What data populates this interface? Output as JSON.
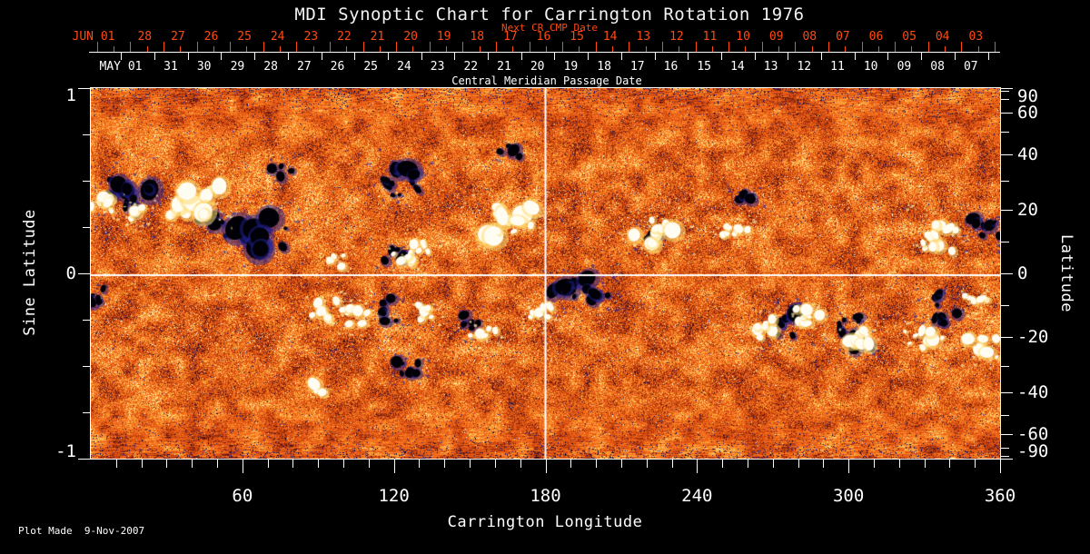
{
  "title": "MDI Synoptic Chart for Carrington Rotation 1976",
  "footer": "Plot Made  9-Nov-2007",
  "colors": {
    "background": "#000000",
    "axis_text": "#ffffff",
    "next_cr_axis_text": "#ff4a12",
    "reference_line": "#ffffff"
  },
  "axes": {
    "x_top_red": {
      "title": "Next CR CMP Date",
      "first_label": "JUN 01",
      "day_labels": [
        "28",
        "27",
        "26",
        "25",
        "24",
        "23",
        "22",
        "21",
        "20",
        "19",
        "18",
        "17",
        "16",
        "15",
        "14",
        "13",
        "12",
        "11",
        "10",
        "09",
        "08",
        "07",
        "06",
        "05",
        "04",
        "03"
      ]
    },
    "x_top_white": {
      "title": "Central Meridian Passage Date",
      "first_label": "MAY 01",
      "day_labels": [
        "31",
        "30",
        "29",
        "28",
        "27",
        "26",
        "25",
        "24",
        "23",
        "22",
        "21",
        "20",
        "19",
        "18",
        "17",
        "16",
        "15",
        "14",
        "13",
        "12",
        "11",
        "10",
        "09",
        "08",
        "07"
      ]
    },
    "x_bottom": {
      "title": "Carrington Longitude",
      "labels": [
        "60",
        "120",
        "180",
        "240",
        "300",
        "360"
      ],
      "values": [
        60,
        120,
        180,
        240,
        300,
        360
      ],
      "minor_step_deg": 10,
      "range_deg": [
        0,
        360
      ]
    },
    "y_left": {
      "title": "Sine Latitude",
      "labels": [
        "1",
        "0",
        "-1"
      ],
      "values": [
        1,
        0,
        -1
      ],
      "minor_step": 0.25,
      "range": [
        -1,
        1
      ]
    },
    "y_right": {
      "title": "Latitude",
      "labels": [
        "90",
        "60",
        "40",
        "20",
        "0",
        "-20",
        "-40",
        "-60",
        "-90"
      ],
      "values_deg": [
        90,
        60,
        40,
        20,
        0,
        -20,
        -40,
        -60,
        -90
      ],
      "minor_values_deg": [
        80,
        70,
        50,
        30,
        10,
        -10,
        -30,
        -50,
        -70,
        -80
      ]
    }
  },
  "chart_data": {
    "type": "heatmap",
    "title": "MDI Synoptic Chart for Carrington Rotation 1976",
    "xlabel": "Carrington Longitude",
    "ylabel": "Sine Latitude",
    "ylabel_right": "Latitude",
    "xlim": [
      0,
      360
    ],
    "ylim": [
      -1,
      1
    ],
    "grid": false,
    "description": "Full-Sun MDI line-of-sight magnetogram synoptic map: granular orange/red quiet-Sun field with blue/navy negative speckles, horizontally-striped noise near both poles, white/yellow patches = positive polarity flux, black/navy patches = negative polarity flux",
    "reference_lines": {
      "vertical_lon_deg": 180,
      "horizontal_sine_lat": 0
    },
    "colormap_stops": [
      [
        -1.05,
        "#000000"
      ],
      [
        -0.9,
        "#0a0a32"
      ],
      [
        -0.76,
        "#2222a0"
      ],
      [
        -0.62,
        "#46141e"
      ],
      [
        -0.45,
        "#82230a"
      ],
      [
        -0.25,
        "#be3c0c"
      ],
      [
        -0.05,
        "#e25414"
      ],
      [
        0.18,
        "#f0681a"
      ],
      [
        0.4,
        "#fc8a26"
      ],
      [
        0.6,
        "#ffb246"
      ],
      [
        0.76,
        "#ffdc78"
      ],
      [
        0.9,
        "#fff4c8"
      ],
      [
        1.05,
        "#ffffff"
      ]
    ],
    "active_regions": [
      {
        "lon": 16,
        "sin_lat": 0.42,
        "ext_lon_deg": 10,
        "ext_sin_lat": 0.15,
        "polarity": "negative",
        "blobs": 16
      },
      {
        "lon": 47,
        "sin_lat": 0.28,
        "ext_lon_deg": 6,
        "ext_sin_lat": 0.06,
        "polarity": "negative",
        "blobs": 6
      },
      {
        "lon": 66,
        "sin_lat": 0.22,
        "ext_lon_deg": 13,
        "ext_sin_lat": 0.13,
        "polarity": "negative",
        "blobs": 13
      },
      {
        "lon": 75,
        "sin_lat": 0.55,
        "ext_lon_deg": 4,
        "ext_sin_lat": 0.05,
        "polarity": "negative",
        "blobs": 4
      },
      {
        "lon": 122,
        "sin_lat": 0.5,
        "ext_lon_deg": 9,
        "ext_sin_lat": 0.11,
        "polarity": "negative",
        "blobs": 11
      },
      {
        "lon": 120,
        "sin_lat": 0.09,
        "ext_lon_deg": 6,
        "ext_sin_lat": 0.05,
        "polarity": "negative",
        "blobs": 6
      },
      {
        "lon": 117,
        "sin_lat": -0.21,
        "ext_lon_deg": 5,
        "ext_sin_lat": 0.1,
        "polarity": "negative",
        "blobs": 7
      },
      {
        "lon": 150,
        "sin_lat": -0.27,
        "ext_lon_deg": 4,
        "ext_sin_lat": 0.06,
        "polarity": "negative",
        "blobs": 5
      },
      {
        "lon": 166,
        "sin_lat": 0.66,
        "ext_lon_deg": 4,
        "ext_sin_lat": 0.04,
        "polarity": "negative",
        "blobs": 4
      },
      {
        "lon": 126,
        "sin_lat": -0.51,
        "ext_lon_deg": 6,
        "ext_sin_lat": 0.06,
        "polarity": "negative",
        "blobs": 7
      },
      {
        "lon": 194,
        "sin_lat": -0.08,
        "ext_lon_deg": 11,
        "ext_sin_lat": 0.1,
        "polarity": "negative",
        "blobs": 12
      },
      {
        "lon": 221,
        "sin_lat": 0.21,
        "ext_lon_deg": 4,
        "ext_sin_lat": 0.05,
        "polarity": "negative",
        "blobs": 4
      },
      {
        "lon": 259,
        "sin_lat": 0.42,
        "ext_lon_deg": 5,
        "ext_sin_lat": 0.05,
        "polarity": "negative",
        "blobs": 4
      },
      {
        "lon": 276,
        "sin_lat": -0.27,
        "ext_lon_deg": 7,
        "ext_sin_lat": 0.09,
        "polarity": "negative",
        "blobs": 9
      },
      {
        "lon": 299,
        "sin_lat": -0.29,
        "ext_lon_deg": 7,
        "ext_sin_lat": 0.08,
        "polarity": "negative",
        "blobs": 8
      },
      {
        "lon": 306,
        "sin_lat": -0.37,
        "ext_lon_deg": 5,
        "ext_sin_lat": 0.06,
        "polarity": "negative",
        "blobs": 5
      },
      {
        "lon": 336,
        "sin_lat": -0.18,
        "ext_lon_deg": 7,
        "ext_sin_lat": 0.12,
        "polarity": "negative",
        "blobs": 10
      },
      {
        "lon": 354,
        "sin_lat": 0.24,
        "ext_lon_deg": 6,
        "ext_sin_lat": 0.08,
        "polarity": "negative",
        "blobs": 7
      },
      {
        "lon": 2,
        "sin_lat": -0.12,
        "ext_lon_deg": 4,
        "ext_sin_lat": 0.06,
        "polarity": "negative",
        "blobs": 5
      },
      {
        "lon": 5.5,
        "sin_lat": 0.37,
        "ext_lon_deg": 5,
        "ext_sin_lat": 0.07,
        "polarity": "positive",
        "blobs": 6
      },
      {
        "lon": 18,
        "sin_lat": 0.32,
        "ext_lon_deg": 4,
        "ext_sin_lat": 0.05,
        "polarity": "positive",
        "blobs": 5
      },
      {
        "lon": 41,
        "sin_lat": 0.39,
        "ext_lon_deg": 13,
        "ext_sin_lat": 0.11,
        "polarity": "positive",
        "blobs": 15
      },
      {
        "lon": 97,
        "sin_lat": 0.06,
        "ext_lon_deg": 5,
        "ext_sin_lat": 0.06,
        "polarity": "positive",
        "blobs": 6
      },
      {
        "lon": 125,
        "sin_lat": 0.07,
        "ext_lon_deg": 5,
        "ext_sin_lat": 0.06,
        "polarity": "positive",
        "blobs": 6
      },
      {
        "lon": 131,
        "sin_lat": 0.14,
        "ext_lon_deg": 5,
        "ext_sin_lat": 0.07,
        "polarity": "positive",
        "blobs": 6
      },
      {
        "lon": 164,
        "sin_lat": 0.28,
        "ext_lon_deg": 12,
        "ext_sin_lat": 0.11,
        "polarity": "positive",
        "blobs": 14
      },
      {
        "lon": 93,
        "sin_lat": -0.2,
        "ext_lon_deg": 6,
        "ext_sin_lat": 0.08,
        "polarity": "positive",
        "blobs": 8
      },
      {
        "lon": 104,
        "sin_lat": -0.24,
        "ext_lon_deg": 6,
        "ext_sin_lat": 0.07,
        "polarity": "positive",
        "blobs": 7
      },
      {
        "lon": 133,
        "sin_lat": -0.21,
        "ext_lon_deg": 4,
        "ext_sin_lat": 0.05,
        "polarity": "positive",
        "blobs": 5
      },
      {
        "lon": 155,
        "sin_lat": -0.33,
        "ext_lon_deg": 5,
        "ext_sin_lat": 0.05,
        "polarity": "positive",
        "blobs": 5
      },
      {
        "lon": 178,
        "sin_lat": -0.22,
        "ext_lon_deg": 5,
        "ext_sin_lat": 0.06,
        "polarity": "positive",
        "blobs": 6
      },
      {
        "lon": 224,
        "sin_lat": 0.22,
        "ext_lon_deg": 10,
        "ext_sin_lat": 0.09,
        "polarity": "positive",
        "blobs": 12
      },
      {
        "lon": 254,
        "sin_lat": 0.22,
        "ext_lon_deg": 6,
        "ext_sin_lat": 0.06,
        "polarity": "positive",
        "blobs": 7
      },
      {
        "lon": 266,
        "sin_lat": -0.3,
        "ext_lon_deg": 6,
        "ext_sin_lat": 0.08,
        "polarity": "positive",
        "blobs": 8
      },
      {
        "lon": 283,
        "sin_lat": -0.22,
        "ext_lon_deg": 6,
        "ext_sin_lat": 0.07,
        "polarity": "positive",
        "blobs": 7
      },
      {
        "lon": 305,
        "sin_lat": -0.36,
        "ext_lon_deg": 6,
        "ext_sin_lat": 0.07,
        "polarity": "positive",
        "blobs": 8
      },
      {
        "lon": 330,
        "sin_lat": -0.36,
        "ext_lon_deg": 8,
        "ext_sin_lat": 0.08,
        "polarity": "positive",
        "blobs": 10
      },
      {
        "lon": 353,
        "sin_lat": -0.4,
        "ext_lon_deg": 6,
        "ext_sin_lat": 0.07,
        "polarity": "positive",
        "blobs": 8
      },
      {
        "lon": 335,
        "sin_lat": 0.2,
        "ext_lon_deg": 9,
        "ext_sin_lat": 0.11,
        "polarity": "positive",
        "blobs": 12
      },
      {
        "lon": 351,
        "sin_lat": -0.14,
        "ext_lon_deg": 5,
        "ext_sin_lat": 0.05,
        "polarity": "positive",
        "blobs": 6
      },
      {
        "lon": 90,
        "sin_lat": -0.62,
        "ext_lon_deg": 3,
        "ext_sin_lat": 0.03,
        "polarity": "positive",
        "blobs": 3
      }
    ]
  }
}
